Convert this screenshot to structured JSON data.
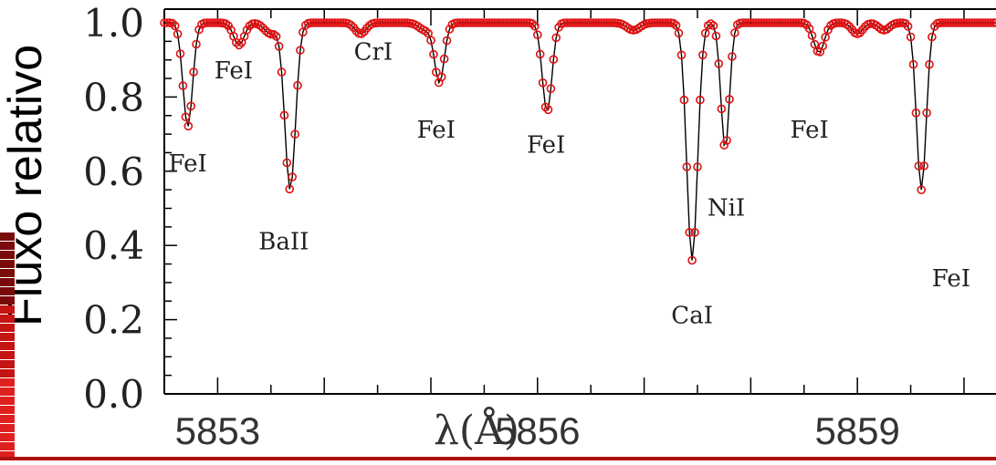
{
  "colors": {
    "marker": "#e01010",
    "line": "#000000",
    "axis": "#000000",
    "decor_dark": "#7a0b0b",
    "decor_mid": "#c41414",
    "decor_light": "#e02020"
  },
  "chart_data": {
    "type": "line",
    "title": "",
    "xlabel": "λ(Å)",
    "ylabel": "Fluxo relativo",
    "xlim": [
      5852.5,
      5860.3
    ],
    "ylim": [
      0.0,
      1.03
    ],
    "x_ticks": [
      5853,
      5856,
      5859
    ],
    "x_tick_labels": [
      "5853",
      "5856",
      "5859"
    ],
    "y_ticks": [
      0.0,
      0.2,
      0.4,
      0.6,
      0.8,
      1.0
    ],
    "y_tick_labels": [
      "0.0",
      "0.2",
      "0.4",
      "0.6",
      "0.8",
      "1.0"
    ],
    "grid": false,
    "continuum": 1.0,
    "lines": [
      {
        "label": "FeI",
        "center": 5852.72,
        "depth": 0.28,
        "width": 0.045,
        "label_x": 5852.72,
        "label_y": 0.6
      },
      {
        "label": "FeI",
        "center": 5853.2,
        "depth": 0.06,
        "width": 0.05,
        "label_x": 5853.15,
        "label_y": 0.85
      },
      {
        "label": "BaII",
        "center": 5853.68,
        "depth": 0.45,
        "width": 0.05,
        "label_x": 5853.62,
        "label_y": 0.39
      },
      {
        "label": "CrI",
        "center": 5854.34,
        "depth": 0.03,
        "width": 0.05,
        "label_x": 5854.46,
        "label_y": 0.9
      },
      {
        "label": "FeI",
        "center": 5855.08,
        "depth": 0.16,
        "width": 0.045,
        "label_x": 5855.05,
        "label_y": 0.69
      },
      {
        "label": "FeI",
        "center": 5856.09,
        "depth": 0.24,
        "width": 0.045,
        "label_x": 5856.08,
        "label_y": 0.65
      },
      {
        "label": "CaI",
        "center": 5857.45,
        "depth": 0.64,
        "width": 0.05,
        "label_x": 5857.45,
        "label_y": 0.19
      },
      {
        "label": "NiI",
        "center": 5857.76,
        "depth": 0.34,
        "width": 0.04,
        "label_x": 5857.77,
        "label_y": 0.48
      },
      {
        "label": "FeI",
        "center": 5858.64,
        "depth": 0.08,
        "width": 0.05,
        "label_x": 5858.55,
        "label_y": 0.69
      },
      {
        "label": "FeI",
        "center": 5859.6,
        "depth": 0.45,
        "width": 0.045,
        "label_x": 5859.88,
        "label_y": 0.29
      }
    ],
    "minor_dips": [
      {
        "center": 5853.5,
        "depth": 0.03,
        "width": 0.06
      },
      {
        "center": 5854.95,
        "depth": 0.02,
        "width": 0.06
      },
      {
        "center": 5856.9,
        "depth": 0.02,
        "width": 0.06
      },
      {
        "center": 5859.0,
        "depth": 0.03,
        "width": 0.05
      },
      {
        "center": 5859.25,
        "depth": 0.02,
        "width": 0.05
      }
    ],
    "sample_step": 0.025
  }
}
